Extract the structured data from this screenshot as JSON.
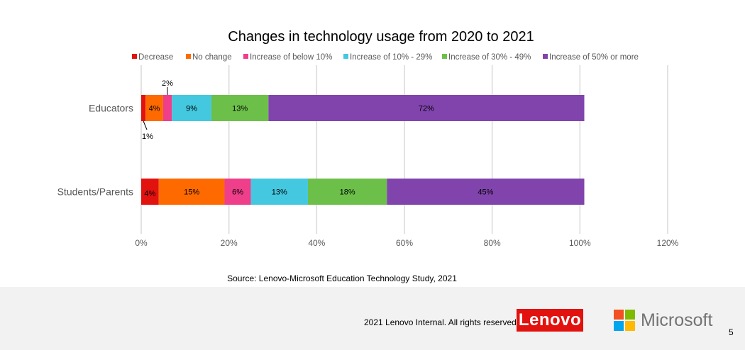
{
  "chart_data": {
    "type": "bar",
    "orientation": "horizontal",
    "stacked": true,
    "title": "Changes in technology usage from 2020 to 2021",
    "categories": [
      "Educators",
      "Students/Parents"
    ],
    "series": [
      {
        "name": "Decrease",
        "color": "#e2120f",
        "values": [
          1,
          4
        ]
      },
      {
        "name": "No change",
        "color": "#ff6a00",
        "values": [
          4,
          15
        ]
      },
      {
        "name": "Increase of below 10%",
        "color": "#ef3e8a",
        "values": [
          2,
          6
        ]
      },
      {
        "name": "Increase of 10% - 29%",
        "color": "#44c8e0",
        "values": [
          9,
          13
        ]
      },
      {
        "name": "Increase of 30% - 49%",
        "color": "#6cc04a",
        "values": [
          13,
          18
        ]
      },
      {
        "name": "Increase of 50% or more",
        "color": "#8044ac",
        "values": [
          72,
          45
        ]
      }
    ],
    "data_labels": [
      [
        "1%",
        "4%",
        "2%",
        "9%",
        "13%",
        "72%"
      ],
      [
        "4%",
        "15%",
        "6%",
        "13%",
        "18%",
        "45%"
      ]
    ],
    "xlim": [
      0,
      120
    ],
    "x_ticks": [
      "0%",
      "20%",
      "40%",
      "60%",
      "80%",
      "100%",
      "120%"
    ],
    "grid": true,
    "legend_position": "top"
  },
  "source": "Source: Lenovo-Microsoft Education Technology Study, 2021",
  "footer": {
    "copyright": "2021 Lenovo Internal. All rights reserved.",
    "lenovo_logo": "Lenovo",
    "microsoft_logo": "Microsoft",
    "page_number": "5"
  }
}
